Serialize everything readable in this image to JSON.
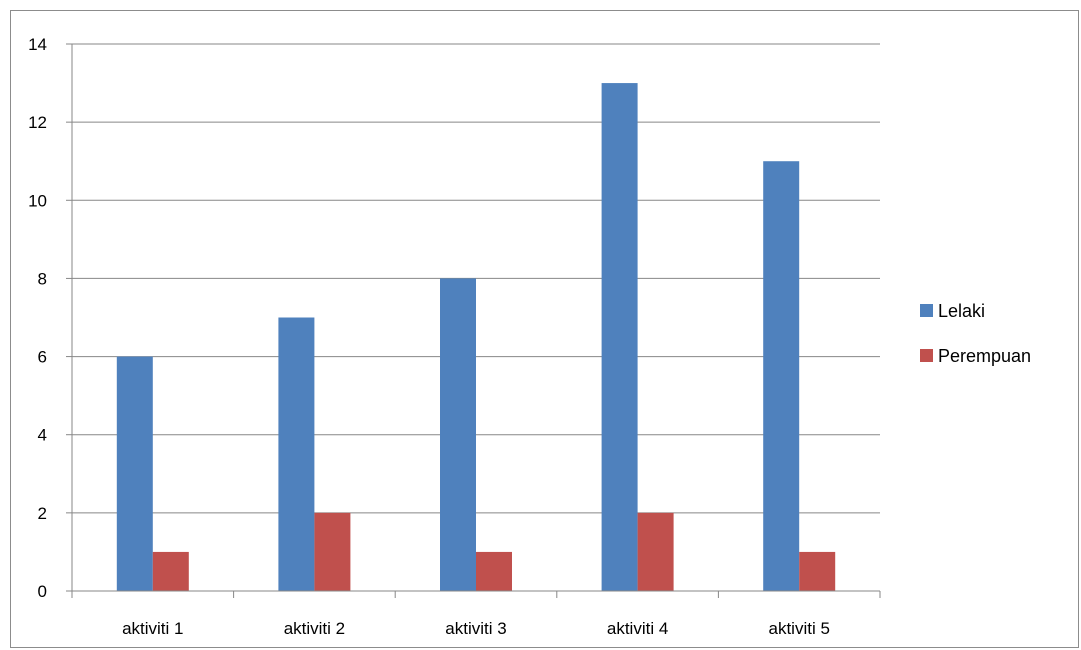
{
  "chart_data": {
    "type": "bar",
    "categories": [
      "aktiviti 1",
      "aktiviti 2",
      "aktiviti 3",
      "aktiviti 4",
      "aktiviti 5"
    ],
    "series": [
      {
        "name": "Lelaki",
        "values": [
          6,
          7,
          8,
          13,
          11
        ],
        "color": "#4f81bd"
      },
      {
        "name": "Perempuan",
        "values": [
          1,
          2,
          1,
          2,
          1
        ],
        "color": "#c0504d"
      }
    ],
    "ylim": [
      0,
      14
    ],
    "yticks": [
      0,
      2,
      4,
      6,
      8,
      10,
      12,
      14
    ],
    "grid": true,
    "legend": "right",
    "gridline_color": "#878787"
  }
}
